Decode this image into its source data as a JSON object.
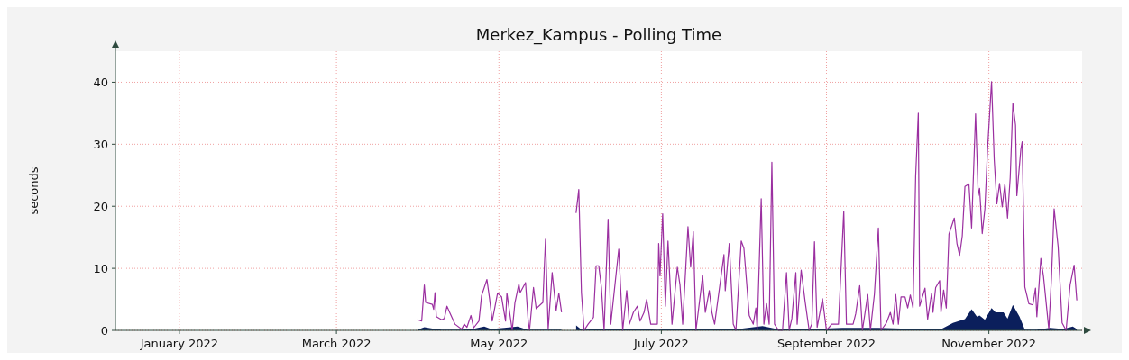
{
  "chart_data": {
    "type": "line",
    "title": "Merkez_Kampus - Polling Time",
    "ylabel": "seconds",
    "xlim": [
      "2021-12-08",
      "2022-12-06"
    ],
    "xticks": [
      {
        "value": "2022-01-01",
        "label": "January 2022"
      },
      {
        "value": "2022-03-01",
        "label": "March 2022"
      },
      {
        "value": "2022-05-01",
        "label": "May 2022"
      },
      {
        "value": "2022-07-01",
        "label": "July 2022"
      },
      {
        "value": "2022-09-01",
        "label": "September 2022"
      },
      {
        "value": "2022-11-01",
        "label": "November 2022"
      }
    ],
    "ylim": [
      0,
      45
    ],
    "yticks": [
      0,
      10,
      20,
      30,
      40
    ],
    "grid": true,
    "series": [
      {
        "type": "area",
        "color": "#0b1f5c",
        "x": [
          "2022-03-31T12:00",
          "2022-04-03",
          "2022-04-06",
          "2022-04-09T12:00",
          "2022-04-17",
          "2022-04-22",
          "2022-04-25T12:00",
          "2022-04-28",
          "2022-05-03",
          "2022-05-08",
          "2022-05-11T12:00",
          "2022-05-18T12:00",
          "2022-05-24T12:00",
          "2022-05-28",
          "2022-05-30",
          "2022-06-01",
          "2022-06-11",
          "2022-06-19T12:00",
          "2022-06-29T12:00",
          "2022-07-10",
          "2022-07-20",
          "2022-07-30",
          "2022-08-08",
          "2022-08-12T12:00",
          "2022-08-26T12:00",
          "2022-09-07",
          "2022-09-20T12:00",
          "2022-09-29",
          "2022-10-09T12:00",
          "2022-10-14T12:00",
          "2022-10-18T12:00",
          "2022-10-23",
          "2022-10-25T12:00",
          "2022-10-27T12:00",
          "2022-10-28T12:00",
          "2022-10-30T12:00",
          "2022-11-02",
          "2022-11-03T12:00",
          "2022-11-06T12:00",
          "2022-11-08",
          "2022-11-10",
          "2022-11-12T12:00",
          "2022-11-14T12:00",
          "2022-11-19",
          "2022-11-24",
          "2022-11-29",
          "2022-12-02T12:00",
          "2022-12-04"
        ],
        "values": [
          0.1,
          0.5,
          0.3,
          0.1,
          0.1,
          0.3,
          0.6,
          0.2,
          0.4,
          0.6,
          0.1,
          0.1,
          0.1,
          null,
          0.8,
          0.1,
          0.2,
          0.3,
          0.1,
          0.3,
          0.3,
          0.2,
          0.7,
          0.3,
          0.2,
          0.4,
          0.4,
          0.3,
          0.2,
          0.3,
          1.2,
          1.8,
          3.4,
          2.2,
          2.4,
          1.7,
          3.6,
          2.9,
          2.9,
          1.9,
          4.1,
          2.2,
          0.1,
          0.1,
          0.4,
          0.2,
          0.6,
          0.2
        ]
      },
      {
        "color": "#9b2fa0",
        "x": [
          "2022-03-31T12:00",
          "2022-04-02",
          "2022-04-03",
          "2022-04-03T12:00",
          "2022-04-06",
          "2022-04-06T12:00",
          "2022-04-07",
          "2022-04-07T12:00",
          "2022-04-09T12:00",
          "2022-04-10T12:00",
          "2022-04-11T12:00",
          "2022-04-12T12:00",
          "2022-04-14T12:00",
          "2022-04-17",
          "2022-04-18",
          "2022-04-19",
          "2022-04-20T12:00",
          "2022-04-21T12:00",
          "2022-04-23T12:00",
          "2022-04-24T12:00",
          "2022-04-26T12:00",
          "2022-04-27T12:00",
          "2022-04-28T12:00",
          "2022-04-30T12:00",
          "2022-05-02",
          "2022-05-03T12:00",
          "2022-05-04",
          "2022-05-06",
          "2022-05-07",
          "2022-05-08T12:00",
          "2022-05-09",
          "2022-05-11",
          "2022-05-12",
          "2022-05-12T12:00",
          "2022-05-14",
          "2022-05-15",
          "2022-05-17T12:00",
          "2022-05-18T12:00",
          "2022-05-19T12:00",
          "2022-05-21",
          "2022-05-22T12:00",
          "2022-05-23T12:00",
          "2022-05-24T12:00",
          "2022-05-28",
          "2022-05-30",
          "2022-05-31",
          "2022-06-01",
          "2022-06-02",
          "2022-06-03T12:00",
          "2022-06-05T12:00",
          "2022-06-06T12:00",
          "2022-06-07T12:00",
          "2022-06-08T12:00",
          "2022-06-09T12:00",
          "2022-06-11",
          "2022-06-12",
          "2022-06-15",
          "2022-06-16T12:00",
          "2022-06-18",
          "2022-06-19",
          "2022-06-20T12:00",
          "2022-06-22",
          "2022-06-23",
          "2022-06-24T12:00",
          "2022-06-25T12:00",
          "2022-06-27",
          "2022-06-29T12:00",
          "2022-06-30",
          "2022-06-30T12:00",
          "2022-07-01T12:00",
          "2022-07-02T12:00",
          "2022-07-03T12:00",
          "2022-07-05",
          "2022-07-07",
          "2022-07-08",
          "2022-07-09",
          "2022-07-11",
          "2022-07-12",
          "2022-07-13",
          "2022-07-14",
          "2022-07-16T12:00",
          "2022-07-17T12:00",
          "2022-07-19",
          "2022-07-20",
          "2022-07-21",
          "2022-07-24T12:00",
          "2022-07-25",
          "2022-07-26T12:00",
          "2022-07-28",
          "2022-07-29",
          "2022-07-31",
          "2022-08-01",
          "2022-08-03",
          "2022-08-04T12:00",
          "2022-08-05T12:00",
          "2022-08-06",
          "2022-08-07T12:00",
          "2022-08-08T12:00",
          "2022-08-09T12:00",
          "2022-08-10T12:00",
          "2022-08-11T12:00",
          "2022-08-12T12:00",
          "2022-08-14",
          "2022-08-15T12:00",
          "2022-08-17",
          "2022-08-18",
          "2022-08-19",
          "2022-08-20T12:00",
          "2022-08-21",
          "2022-08-22T12:00",
          "2022-08-24",
          "2022-08-25T12:00",
          "2022-08-26T12:00",
          "2022-08-27T12:00",
          "2022-08-28T12:00",
          "2022-08-30T12:00",
          "2022-09-01",
          "2022-09-03",
          "2022-09-05T12:00",
          "2022-09-07T12:00",
          "2022-09-08T12:00",
          "2022-09-11",
          "2022-09-12",
          "2022-09-13T12:00",
          "2022-09-14T12:00",
          "2022-09-16T12:00",
          "2022-09-17T12:00",
          "2022-09-19",
          "2022-09-20T12:00",
          "2022-09-21T12:00",
          "2022-09-23T12:00",
          "2022-09-25",
          "2022-09-26",
          "2022-09-27",
          "2022-09-28",
          "2022-09-29",
          "2022-09-30T12:00",
          "2022-10-01T12:00",
          "2022-10-02T12:00",
          "2022-10-03T12:00",
          "2022-10-04T12:00",
          "2022-10-05T12:00",
          "2022-10-06",
          "2022-10-08",
          "2022-10-09",
          "2022-10-10T12:00",
          "2022-10-11",
          "2022-10-12",
          "2022-10-13T12:00",
          "2022-10-14",
          "2022-10-15",
          "2022-10-16",
          "2022-10-17",
          "2022-10-19",
          "2022-10-20",
          "2022-10-21",
          "2022-10-22",
          "2022-10-23",
          "2022-10-24T12:00",
          "2022-10-25T12:00",
          "2022-10-27",
          "2022-10-28",
          "2022-10-28T12:00",
          "2022-10-29T12:00",
          "2022-10-30T12:00",
          "2022-10-31T12:00",
          "2022-11-02",
          "2022-11-03",
          "2022-11-04",
          "2022-11-05",
          "2022-11-06",
          "2022-11-07",
          "2022-11-08",
          "2022-11-09",
          "2022-11-10",
          "2022-11-11",
          "2022-11-11T12:00",
          "2022-11-13",
          "2022-11-13T12:00",
          "2022-11-14T12:00",
          "2022-11-16",
          "2022-11-17T12:00",
          "2022-11-18T12:00",
          "2022-11-19",
          "2022-11-20T12:00",
          "2022-11-21T12:00",
          "2022-11-23T12:00",
          "2022-11-24T12:00",
          "2022-11-25T12:00",
          "2022-11-27",
          "2022-11-28T12:00",
          "2022-11-30",
          "2022-12-01T12:00",
          "2022-12-03",
          "2022-12-04"
        ],
        "values": [
          1.7,
          1.5,
          7.3,
          4.5,
          4.2,
          3.4,
          6.1,
          2.2,
          1.7,
          1.9,
          3.9,
          2.9,
          1.0,
          0.2,
          1.0,
          0.5,
          2.4,
          0.4,
          1.5,
          5.6,
          8.2,
          5.1,
          1.5,
          6.0,
          5.4,
          1.5,
          6.0,
          0,
          4.4,
          7.5,
          6.1,
          7.7,
          1.5,
          0,
          6.9,
          3.5,
          4.5,
          14.7,
          0.2,
          9.3,
          3.2,
          6.0,
          3.0,
          null,
          19.0,
          22.7,
          6.0,
          0,
          1.0,
          2.1,
          10.4,
          10.4,
          6.9,
          0,
          17.9,
          1.0,
          13.1,
          0,
          6.4,
          1.0,
          2.9,
          3.9,
          1.5,
          2.9,
          5.0,
          1.0,
          1.0,
          14.0,
          8.8,
          18.8,
          3.9,
          14.4,
          1.0,
          10.2,
          7.3,
          1.0,
          16.7,
          10.2,
          15.9,
          0,
          8.8,
          2.9,
          6.4,
          2.9,
          1.0,
          12.2,
          6.4,
          14.0,
          1.0,
          0,
          14.4,
          13.2,
          2.4,
          1.0,
          3.6,
          0,
          21.2,
          1.0,
          4.3,
          1.0,
          27.1,
          1.0,
          0,
          0,
          9.3,
          0,
          1.9,
          9.3,
          1.0,
          9.7,
          4.6,
          0,
          1.0,
          14.3,
          0.5,
          5.1,
          0,
          1.0,
          1.0,
          19.2,
          1.0,
          1.0,
          2.7,
          7.2,
          0,
          5.8,
          0,
          5.8,
          16.5,
          0,
          1.2,
          2.9,
          1.0,
          5.8,
          1.0,
          5.4,
          5.4,
          3.6,
          5.7,
          3.6,
          24.9,
          35.0,
          3.9,
          6.8,
          1.8,
          6.0,
          2.9,
          6.9,
          8.0,
          2.9,
          6.5,
          3.6,
          15.5,
          18.1,
          14.0,
          12.1,
          15.2,
          23.2,
          23.6,
          16.5,
          34.9,
          21.7,
          22.9,
          15.6,
          19.6,
          29.2,
          40.1,
          27.5,
          20.4,
          23.7,
          19.9,
          23.6,
          18.1,
          24.6,
          36.6,
          33.1,
          21.7,
          29.2,
          30.4,
          7.0,
          4.3,
          4.1,
          6.8,
          2.2,
          11.6,
          8.7,
          0.2,
          8.5,
          19.6,
          13.5,
          1.2,
          0,
          7.3,
          10.5,
          4.9
        ]
      }
    ]
  }
}
